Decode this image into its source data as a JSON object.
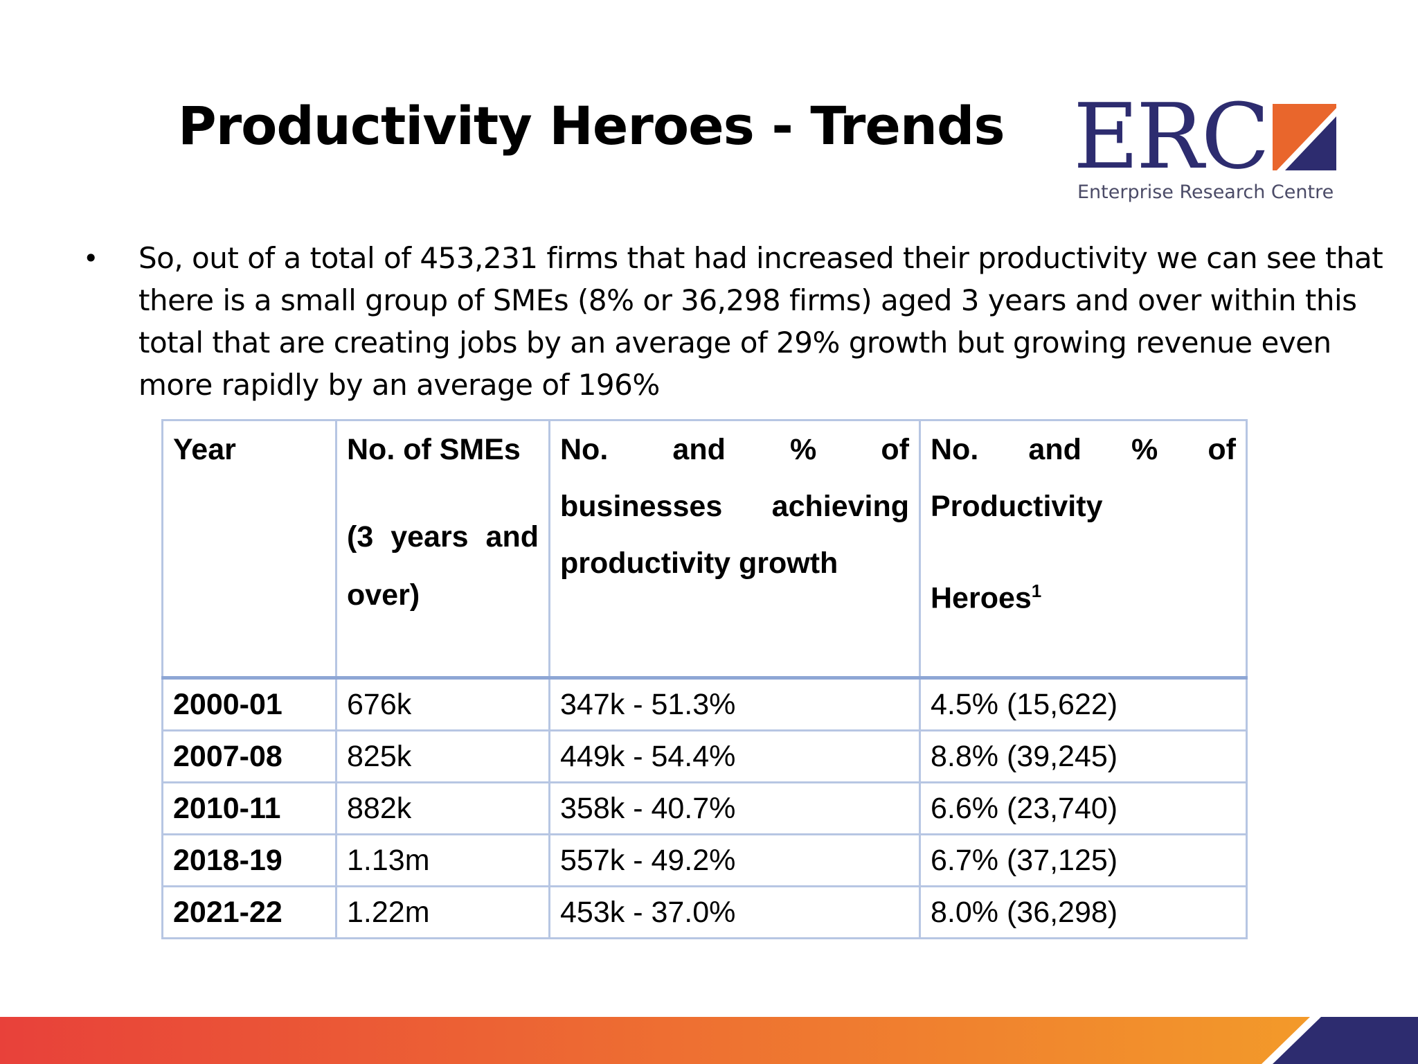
{
  "slide": {
    "title": "Productivity Heroes - Trends",
    "bullet": "So, out of a total of 453,231 firms that had increased their productivity we can see that there is a small group of SMEs (8% or 36,298 firms) aged 3 years and over within this total that are creating jobs by an average of 29% growth but growing revenue even more rapidly by an average of 196%"
  },
  "logo": {
    "text": "ERC",
    "tagline": "Enterprise Research Centre",
    "color": "#2d2c6f"
  },
  "table": {
    "headers": {
      "year": "Year",
      "smes_line1": "No. of SMEs",
      "smes_line2": "(3 years and",
      "smes_line3": "over)",
      "growth_line1": "No. and % of",
      "growth_line2": "businesses achieving",
      "growth_line3": "productivity growth",
      "heroes_line1": "No. and % of",
      "heroes_line2": "Productivity",
      "heroes_line3": "Heroes",
      "heroes_footnote": "1"
    },
    "rows": [
      {
        "year": "2000-01",
        "smes": "676k",
        "growth": "347k - 51.3%",
        "heroes": "4.5% (15,622)"
      },
      {
        "year": "2007-08",
        "smes": "825k",
        "growth": "449k - 54.4%",
        "heroes": "8.8% (39,245)"
      },
      {
        "year": "2010-11",
        "smes": "882k",
        "growth": "358k - 40.7%",
        "heroes": "6.6% (23,740)"
      },
      {
        "year": "2018-19",
        "smes": "1.13m",
        "growth": "557k - 49.2%",
        "heroes": "6.7% (37,125)"
      },
      {
        "year": "2021-22",
        "smes": "1.22m",
        "growth": "453k - 37.0%",
        "heroes": "8.0% (36,298)"
      }
    ]
  },
  "colors": {
    "table_border": "#b7c6e3",
    "header_divider": "#8ea6d5",
    "bar_start": "#e8413a",
    "bar_end": "#f39a2a",
    "bar_navy": "#2d2c6f"
  }
}
